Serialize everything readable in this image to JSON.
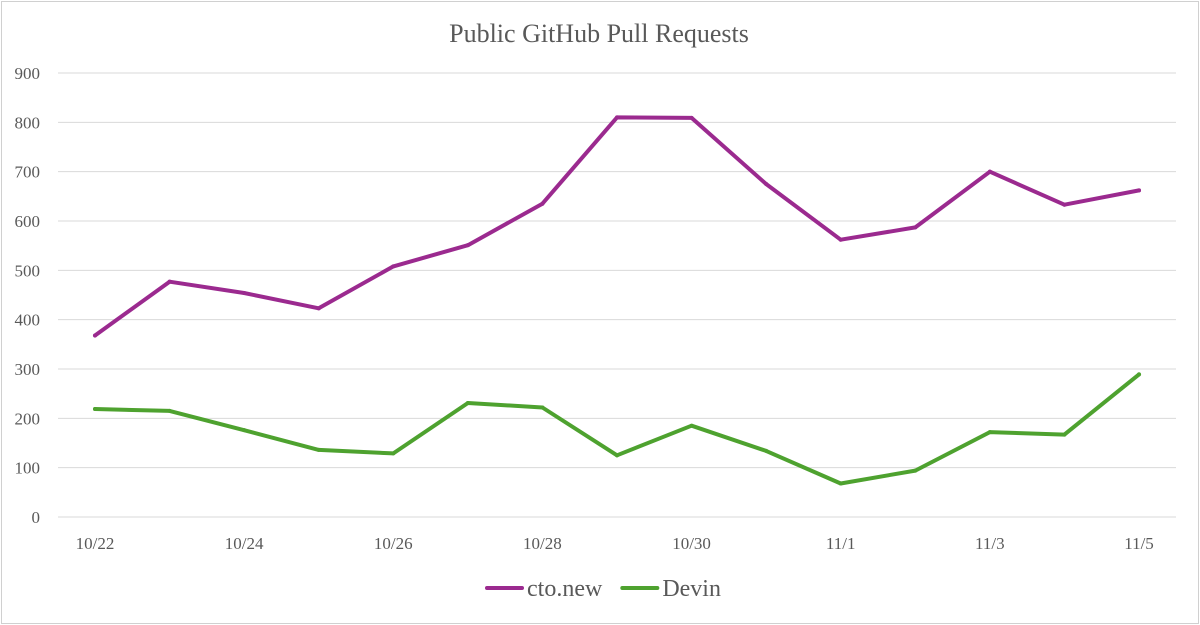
{
  "chart_data": {
    "type": "line",
    "title": "Public GitHub Pull Requests",
    "xlabel": "",
    "ylabel": "",
    "ylim": [
      0,
      900
    ],
    "yticks": [
      0,
      100,
      200,
      300,
      400,
      500,
      600,
      700,
      800,
      900
    ],
    "grid": true,
    "legend_position": "bottom",
    "categories": [
      "10/22",
      "10/23",
      "10/24",
      "10/25",
      "10/26",
      "10/27",
      "10/28",
      "10/29",
      "10/30",
      "10/31",
      "11/1",
      "11/2",
      "11/3",
      "11/4",
      "11/5"
    ],
    "x_tick_labels": [
      "10/22",
      "",
      "10/24",
      "",
      "10/26",
      "",
      "10/28",
      "",
      "10/30",
      "",
      "11/1",
      "",
      "11/3",
      "",
      "11/5"
    ],
    "series": [
      {
        "name": "cto.new",
        "color": "#9b2a8f",
        "values": [
          368,
          477,
          454,
          423,
          508,
          551,
          635,
          810,
          809,
          675,
          562,
          587,
          700,
          633,
          662
        ]
      },
      {
        "name": "Devin",
        "color": "#4ea22f",
        "values": [
          219,
          215,
          176,
          136,
          129,
          231,
          222,
          125,
          185,
          134,
          68,
          94,
          172,
          167,
          289
        ]
      }
    ]
  }
}
